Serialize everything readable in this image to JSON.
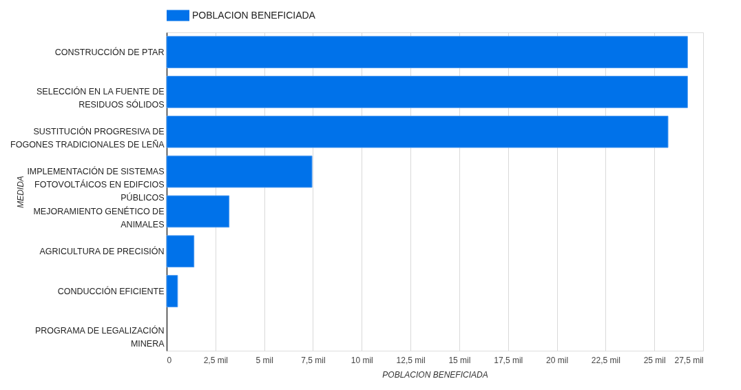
{
  "chart_data": {
    "type": "bar",
    "orientation": "horizontal",
    "categories": [
      "CONSTRUCCIÓN DE PTAR",
      "SELECCIÓN EN LA FUENTE DE RESIDUOS SÓLIDOS",
      "SUSTITUCIÓN PROGRESIVA DE FOGONES TRADICIONALES DE LEÑA",
      "IMPLEMENTACIÓN DE SISTEMAS FOTOVOLTÁICOS EN EDIFCIOS PÚBLICOS",
      "MEJORAMIENTO GENÉTICO DE ANIMALES",
      "AGRICULTURA DE PRECISIÓN",
      "CONDUCCIÓN EFICIENTE",
      "PROGRAMA DE LEGALIZACIÓN MINERA"
    ],
    "series": [
      {
        "name": "POBLACION BENEFICIADA",
        "color": "#0072ea",
        "values": [
          26.7,
          26.7,
          25.7,
          7.45,
          3.2,
          1.4,
          0.56,
          null
        ]
      }
    ],
    "xlabel": "POBLACION BENEFICIADA",
    "ylabel": "MEDIDA",
    "xlim": [
      0,
      27.5
    ],
    "xticks": [
      0,
      {
        "value": 2.5,
        "label": "2,5 mil"
      },
      {
        "value": 5,
        "label": "5 mil"
      },
      {
        "value": 7.5,
        "label": "7,5 mil"
      },
      {
        "value": 10,
        "label": "10 mil"
      },
      {
        "value": 12.5,
        "label": "12,5 mil"
      },
      {
        "value": 15,
        "label": "15 mil"
      },
      {
        "value": 17.5,
        "label": "17,5 mil"
      },
      {
        "value": 20,
        "label": "20 mil"
      },
      {
        "value": 22.5,
        "label": "22,5 mil"
      },
      {
        "value": 25,
        "label": "25 mil"
      },
      {
        "value": 27.5,
        "label": "27,5 mil"
      }
    ],
    "grid": "x",
    "legend": "top"
  }
}
